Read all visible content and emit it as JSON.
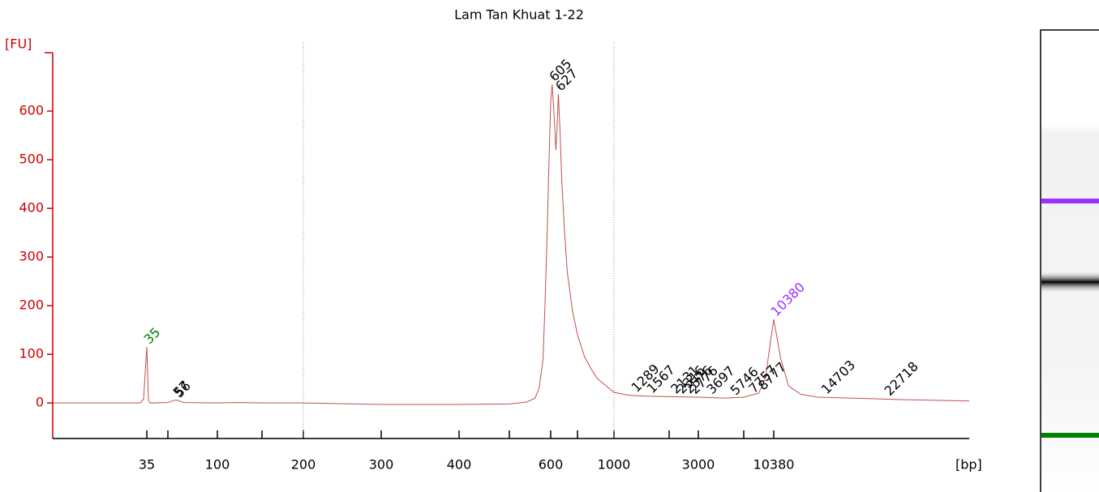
{
  "chart_data": {
    "type": "line",
    "title": "Lam Tan Khuat 1-22",
    "y_label": "[FU]",
    "x_label": "[bp]",
    "log_ladder_x": true,
    "xlim": [
      15,
      40000
    ],
    "ylim": [
      -73,
      720
    ],
    "yticks": [
      0,
      100,
      200,
      300,
      400,
      500,
      600
    ],
    "xticks": [
      35,
      {
        "value": 50,
        "label": null
      },
      100,
      {
        "value": 150,
        "label": null
      },
      200,
      300,
      400,
      {
        "value": 500,
        "label": null
      },
      600,
      {
        "value": 700,
        "label": null
      },
      1000,
      {
        "value": 2000,
        "label": null
      },
      3000,
      {
        "value": 7000,
        "label": null
      },
      10380
    ],
    "region_lines": [
      200,
      1000
    ],
    "axis_color": "#cc0000",
    "series": [
      {
        "name": "Sample",
        "color": "#c0504d",
        "x": [
          15,
          33,
          34,
          35,
          36,
          37,
          50,
          54,
          56,
          58,
          62,
          100,
          120,
          150,
          200,
          300,
          400,
          500,
          540,
          560,
          570,
          580,
          585,
          590,
          595,
          600,
          605,
          612,
          618,
          622,
          627,
          633,
          640,
          650,
          660,
          680,
          700,
          750,
          800,
          850,
          900,
          1000,
          1200,
          1500,
          2000,
          3000,
          5000,
          7000,
          8500,
          9300,
          9800,
          10380,
          10900,
          11500,
          12500,
          14000,
          20000,
          25000,
          40000
        ],
        "values": [
          0,
          0,
          8,
          115,
          6,
          0,
          1,
          5,
          6,
          5,
          1,
          0,
          1,
          0,
          0,
          -3,
          -3,
          -2,
          2,
          10,
          30,
          90,
          200,
          330,
          480,
          620,
          655,
          590,
          520,
          560,
          635,
          560,
          450,
          350,
          270,
          190,
          140,
          95,
          70,
          50,
          40,
          22,
          16,
          14,
          13,
          12,
          10,
          12,
          20,
          50,
          110,
          172,
          90,
          35,
          18,
          12,
          9,
          7,
          4
        ]
      }
    ],
    "annotations": [
      {
        "label": "35",
        "x": 35,
        "y": 115,
        "color": "#008000"
      },
      {
        "label": "57",
        "x": 56,
        "y": 6,
        "color": "#000000"
      },
      {
        "label": "56",
        "x": 57,
        "y": 5,
        "color": "#000000"
      },
      {
        "label": "605",
        "x": 605,
        "y": 655,
        "color": "#000000"
      },
      {
        "label": "627",
        "x": 627,
        "y": 635,
        "color": "#000000"
      },
      {
        "label": "1289",
        "x": 1289,
        "y": 16,
        "color": "#000000"
      },
      {
        "label": "1567",
        "x": 1567,
        "y": 14,
        "color": "#000000"
      },
      {
        "label": "2131",
        "x": 2131,
        "y": 13,
        "color": "#000000"
      },
      {
        "label": "2316",
        "x": 2316,
        "y": 13,
        "color": "#000000"
      },
      {
        "label": "2576",
        "x": 2576,
        "y": 13,
        "color": "#000000"
      },
      {
        "label": "2776",
        "x": 2776,
        "y": 12,
        "color": "#000000"
      },
      {
        "label": "3697",
        "x": 3697,
        "y": 12,
        "color": "#000000"
      },
      {
        "label": "5746",
        "x": 5746,
        "y": 10,
        "color": "#000000"
      },
      {
        "label": "7757",
        "x": 7757,
        "y": 14,
        "color": "#000000"
      },
      {
        "label": "8777",
        "x": 8777,
        "y": 20,
        "color": "#000000"
      },
      {
        "label": "10380",
        "x": 10380,
        "y": 172,
        "color": "#9b30ff"
      },
      {
        "label": "14703",
        "x": 14703,
        "y": 12,
        "color": "#000000"
      },
      {
        "label": "22718",
        "x": 22718,
        "y": 9,
        "color": "#000000"
      }
    ]
  }
}
